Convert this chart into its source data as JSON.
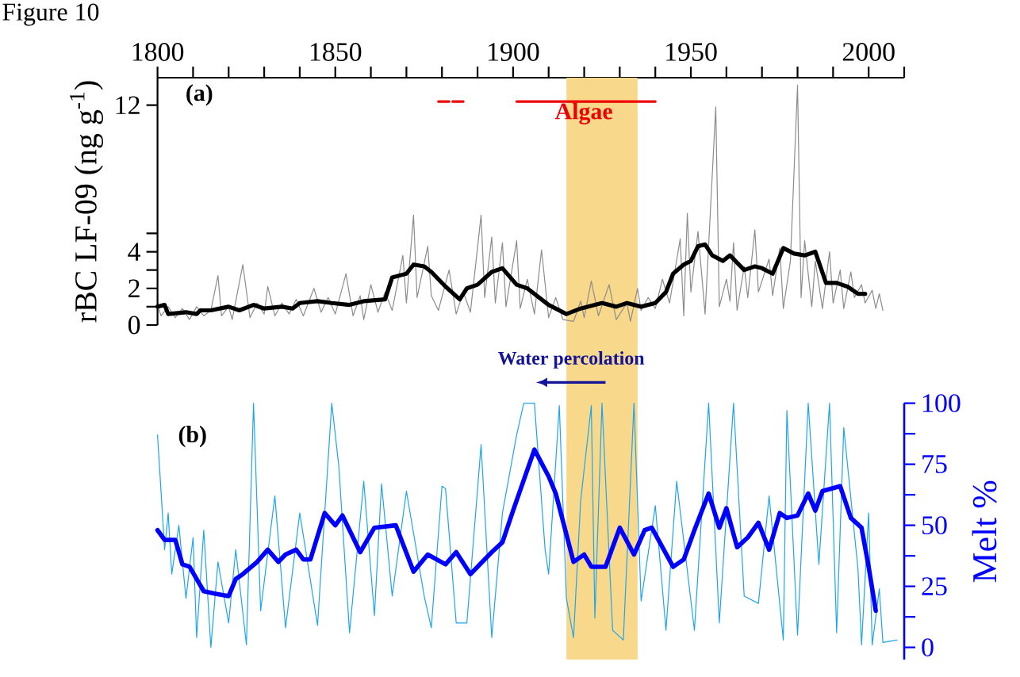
{
  "chart_data": [
    {
      "type": "line",
      "title": "Figure 10",
      "ylabel": "rBC LF-09 (ng g$^{-1}$)",
      "xlim": [
        1800,
        2010
      ],
      "xticks": [
        1800,
        {
          "value": 1810,
          "label": null
        },
        {
          "value": 1820,
          "label": null
        },
        {
          "value": 1830,
          "label": null
        },
        {
          "value": 1840,
          "label": null
        },
        1850,
        {
          "value": 1860,
          "label": null
        },
        {
          "value": 1870,
          "label": null
        },
        {
          "value": 1880,
          "label": null
        },
        {
          "value": 1890,
          "label": null
        },
        1900,
        {
          "value": 1910,
          "label": null
        },
        {
          "value": 1920,
          "label": null
        },
        {
          "value": 1930,
          "label": null
        },
        {
          "value": 1940,
          "label": null
        },
        1950,
        {
          "value": 1960,
          "label": null
        },
        {
          "value": 1970,
          "label": null
        },
        {
          "value": 1980,
          "label": null
        },
        {
          "value": 1990,
          "label": null
        },
        2000,
        {
          "value": 2010,
          "label": null
        }
      ],
      "ylim": [
        0,
        13.5
      ],
      "yticks": [
        0,
        {
          "value": 1,
          "label": null
        },
        2,
        {
          "value": 3,
          "label": null
        },
        4,
        {
          "value": 5,
          "label": null
        },
        12
      ],
      "bands": [
        {
          "axis": "x",
          "from": 1915,
          "to": 1935,
          "color": "#f8d98b"
        }
      ],
      "annotations": [
        "(a)",
        "Algae"
      ],
      "series": [
        {
          "color": "#8c8c8c",
          "x": [
            1800,
            1801,
            1803,
            1805,
            1807,
            1809,
            1811,
            1813,
            1815,
            1817,
            1818,
            1820,
            1821,
            1824,
            1826,
            1828,
            1830,
            1831,
            1833,
            1835,
            1837,
            1839,
            1841,
            1844,
            1846,
            1848,
            1850,
            1853,
            1855,
            1857,
            1858,
            1860,
            1862,
            1864,
            1866,
            1869,
            1870,
            1872,
            1873,
            1876,
            1877,
            1879,
            1882,
            1884,
            1886,
            1888,
            1891,
            1892,
            1894,
            1895,
            1897,
            1898,
            1901,
            1902,
            1904,
            1906,
            1908,
            1910,
            1912,
            1914,
            1917,
            1919,
            1920,
            1922,
            1924,
            1927,
            1929,
            1932,
            1933,
            1935,
            1936,
            1938,
            1940,
            1942,
            1944,
            1947,
            1948,
            1949,
            1950,
            1952,
            1954,
            1957,
            1958,
            1960,
            1961,
            1962,
            1963,
            1965,
            1966,
            1968,
            1969,
            1972,
            1973,
            1975,
            1976,
            1978,
            1980,
            1981,
            1982,
            1984,
            1985,
            1987,
            1989,
            1990,
            1992,
            1993,
            1995,
            1996,
            1998,
            1999,
            2001,
            2002,
            2003,
            2004
          ],
          "values": [
            1.1,
            0.5,
            1.0,
            0.4,
            0.9,
            0.3,
            1.0,
            0.5,
            0.8,
            2.7,
            0.5,
            1.0,
            0.3,
            3.3,
            0.4,
            1.2,
            0.6,
            2.1,
            0.5,
            1.2,
            0.6,
            1.4,
            0.5,
            2.0,
            0.7,
            1.5,
            0.6,
            2.8,
            0.5,
            1.6,
            0.3,
            2.2,
            0.7,
            1.8,
            0.8,
            3.8,
            1.2,
            6.0,
            1.5,
            4.3,
            1.6,
            0.8,
            3.0,
            0.6,
            1.8,
            0.7,
            6.0,
            1.5,
            4.8,
            1.2,
            4.5,
            1.0,
            4.6,
            0.9,
            2.5,
            0.6,
            4.1,
            0.4,
            1.5,
            0.3,
            0.2,
            1.3,
            0.4,
            2.4,
            0.5,
            2.2,
            0.3,
            1.2,
            0.2,
            2.0,
            0.8,
            1.5,
            0.9,
            2.5,
            1.2,
            4.7,
            0.5,
            6.1,
            1.8,
            5.1,
            0.6,
            11.9,
            1.0,
            2.5,
            1.3,
            4.5,
            0.8,
            3.2,
            1.5,
            5.2,
            1.8,
            3.6,
            1.6,
            4.2,
            0.9,
            3.5,
            13.1,
            1.5,
            4.6,
            1.0,
            3.5,
            0.9,
            4.0,
            1.2,
            3.0,
            0.9,
            2.9,
            1.5,
            2.2,
            1.2,
            1.9,
            0.9,
            1.7,
            0.8
          ]
        },
        {
          "color": "#000000",
          "x": [
            1800,
            1802,
            1803,
            1808,
            1811,
            1812,
            1815,
            1820,
            1823,
            1827,
            1830,
            1835,
            1838,
            1840,
            1845,
            1849,
            1854,
            1858,
            1864,
            1866,
            1870,
            1872,
            1875,
            1877,
            1881,
            1885,
            1887,
            1890,
            1894,
            1897,
            1901,
            1904,
            1910,
            1915,
            1919,
            1925,
            1929,
            1932,
            1936,
            1940,
            1943,
            1945,
            1948,
            1950,
            1952,
            1954,
            1956,
            1959,
            1961,
            1965,
            1968,
            1970,
            1973,
            1976,
            1979,
            1982,
            1985,
            1988,
            1991,
            1994,
            1997,
            1999
          ],
          "values": [
            1.0,
            1.1,
            0.6,
            0.7,
            0.6,
            0.8,
            0.8,
            1.0,
            0.8,
            1.1,
            0.9,
            1.0,
            0.9,
            1.2,
            1.3,
            1.2,
            1.1,
            1.3,
            1.4,
            2.6,
            2.8,
            3.3,
            3.2,
            2.9,
            2.1,
            1.4,
            2.0,
            2.2,
            2.9,
            3.1,
            2.2,
            2.0,
            1.1,
            0.6,
            0.9,
            1.2,
            1.0,
            1.2,
            1.0,
            1.2,
            1.8,
            2.8,
            3.3,
            3.5,
            4.3,
            4.4,
            3.8,
            3.5,
            3.8,
            3.0,
            3.2,
            3.1,
            2.8,
            4.2,
            3.9,
            3.8,
            4.0,
            2.3,
            2.3,
            2.1,
            1.7,
            1.7
          ]
        },
        {
          "color": "#ee0000",
          "x": [
            1879,
            1882,
            1882.5,
            1883,
            1886,
            1892,
            1901,
            1940
          ],
          "values": [
            12.2,
            12.2,
            null,
            12.2,
            12.2,
            null,
            12.2,
            12.2
          ]
        }
      ]
    },
    {
      "type": "line",
      "ylabel": "Melt %",
      "tick_labels": "y",
      "xlim": [
        1800,
        2010
      ],
      "ylim": [
        -5,
        100
      ],
      "yticks": [
        0,
        {
          "value": 12.5,
          "label": null
        },
        25,
        {
          "value": 37.5,
          "label": null
        },
        50,
        {
          "value": 62.5,
          "label": null
        },
        75,
        {
          "value": 87.5,
          "label": null
        },
        100
      ],
      "bands": [
        {
          "axis": "x",
          "from": 1915,
          "to": 1935,
          "color": "#f8d98b"
        }
      ],
      "annotations": [
        "(b)",
        "Water percolation"
      ],
      "series": [
        {
          "color": "#1ea5f0",
          "x": [
            1800,
            1802,
            1803,
            1804,
            1806,
            1808,
            1810,
            1811,
            1813,
            1815,
            1817,
            1820,
            1822,
            1825,
            1827,
            1829,
            1833,
            1836,
            1840,
            1845,
            1849,
            1851,
            1854,
            1858,
            1861,
            1863,
            1866,
            1870,
            1875,
            1877,
            1880,
            1881,
            1884,
            1887,
            1891,
            1894,
            1897,
            1901,
            1903,
            1906,
            1909,
            1910,
            1913,
            1915,
            1917,
            1919,
            1922,
            1923,
            1925,
            1928,
            1931,
            1934,
            1936,
            1940,
            1943,
            1946,
            1951,
            1955,
            1958,
            1962,
            1965,
            1969,
            1972,
            1976,
            1977,
            1980,
            1983,
            1986,
            1989,
            1991,
            1993,
            1997,
            1998,
            2000,
            2001,
            2003,
            2004,
            2008
          ],
          "values": [
            87,
            40,
            55,
            30,
            50,
            20,
            45,
            4,
            48,
            0,
            35,
            10,
            40,
            1,
            100,
            15,
            62,
            8,
            55,
            9,
            100,
            74,
            6,
            68,
            13,
            67,
            21,
            64,
            21,
            8,
            66,
            65,
            10,
            10,
            83,
            4,
            55,
            87,
            100,
            100,
            40,
            30,
            99,
            20,
            4,
            60,
            99,
            12,
            100,
            7,
            3,
            100,
            19,
            58,
            7,
            68,
            7,
            100,
            10,
            100,
            21,
            18,
            62,
            3,
            97,
            5,
            100,
            34,
            100,
            6,
            90,
            32,
            1,
            55,
            1,
            24,
            2,
            3
          ]
        },
        {
          "color": "#0000ff",
          "x": [
            1800,
            1802,
            1805,
            1807,
            1809,
            1813,
            1816,
            1820,
            1822,
            1824,
            1828,
            1831,
            1834,
            1836,
            1839,
            1841,
            1843,
            1847,
            1850,
            1852,
            1857,
            1861,
            1867,
            1872,
            1876,
            1881,
            1884,
            1888,
            1894,
            1897,
            1900,
            1906,
            1910,
            1912,
            1917,
            1920,
            1922,
            1926,
            1930,
            1934,
            1937,
            1939,
            1945,
            1948,
            1951,
            1955,
            1958,
            1960,
            1963,
            1966,
            1969,
            1972,
            1975,
            1977,
            1980,
            1983,
            1985,
            1987,
            1992,
            1995,
            1998,
            2000,
            2002
          ],
          "values": [
            48,
            44,
            44,
            34,
            33,
            23,
            22,
            21,
            28,
            30,
            35,
            40,
            35,
            38,
            40,
            36,
            36,
            55,
            50,
            54,
            39,
            49,
            50,
            31,
            38,
            34,
            39,
            30,
            39,
            43,
            56,
            81,
            70,
            63,
            35,
            38,
            33,
            33,
            49,
            38,
            48,
            49,
            33,
            36,
            48,
            63,
            49,
            57,
            41,
            45,
            51,
            40,
            55,
            53,
            54,
            63,
            56,
            64,
            66,
            53,
            49,
            33,
            15
          ]
        }
      ]
    }
  ]
}
